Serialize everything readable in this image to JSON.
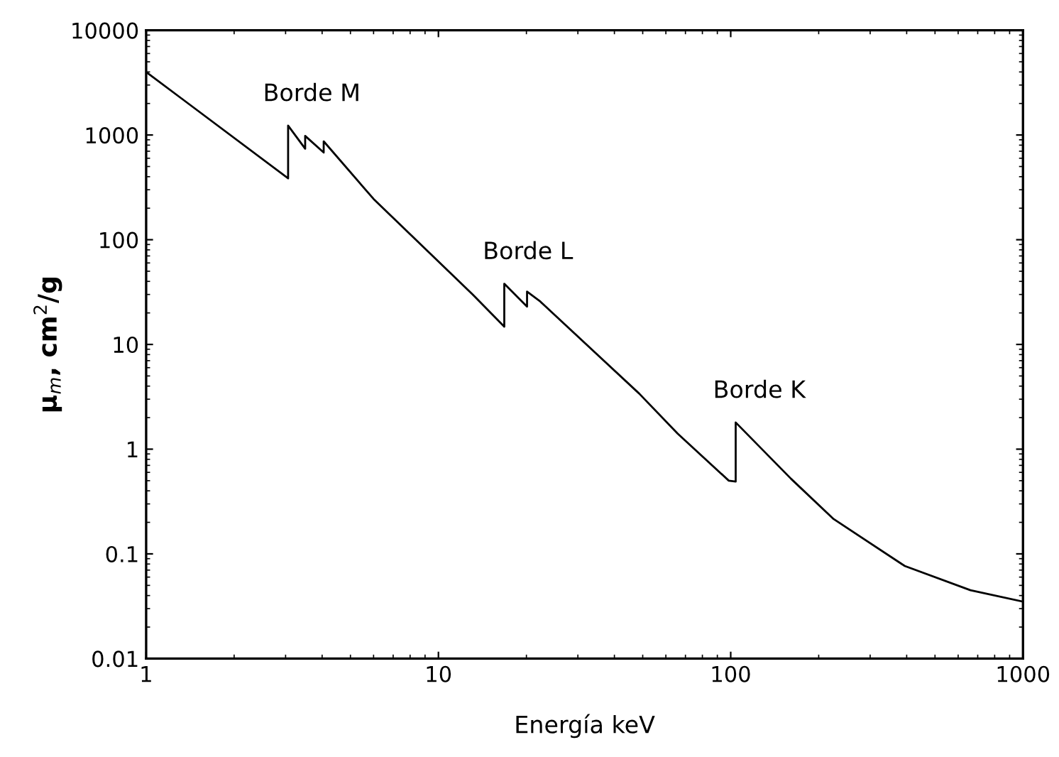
{
  "chart_data": {
    "type": "line",
    "xlabel": "Energía keV",
    "ylabel": "μ$_{m}$, cm$^{2}$/g",
    "x": [
      1,
      3.06,
      3.06,
      3.5,
      3.5,
      4.05,
      4.05,
      6.0,
      13.1,
      16.8,
      16.8,
      20.1,
      20.1,
      22.2,
      48.6,
      65.8,
      98.5,
      104,
      104,
      161,
      225,
      394,
      661,
      1000
    ],
    "series": [
      {
        "color": "#000000",
        "values": [
          4000,
          385,
          1230,
          740,
          980,
          680,
          870,
          245,
          30,
          14.8,
          38,
          23,
          32,
          26,
          3.4,
          1.41,
          0.5,
          0.49,
          1.8,
          0.52,
          0.215,
          0.0766,
          0.045,
          0.035
        ]
      }
    ],
    "log": "xy",
    "xlim": [
      1,
      1000
    ],
    "ylim": [
      0.01,
      10000
    ],
    "xticks": [
      1,
      10,
      100,
      1000
    ],
    "yticks": [
      0.01,
      0.1,
      1,
      10,
      100,
      1000,
      10000
    ],
    "grid": false,
    "legend": false,
    "marker": "none",
    "line_style": "solid",
    "annotations": [
      {
        "text": "Borde M",
        "x": 3.06,
        "y": 1230
      },
      {
        "text": "Borde L",
        "x": 16.8,
        "y": 38
      },
      {
        "text": "Borde K",
        "x": 104,
        "y": 1.8
      }
    ]
  }
}
